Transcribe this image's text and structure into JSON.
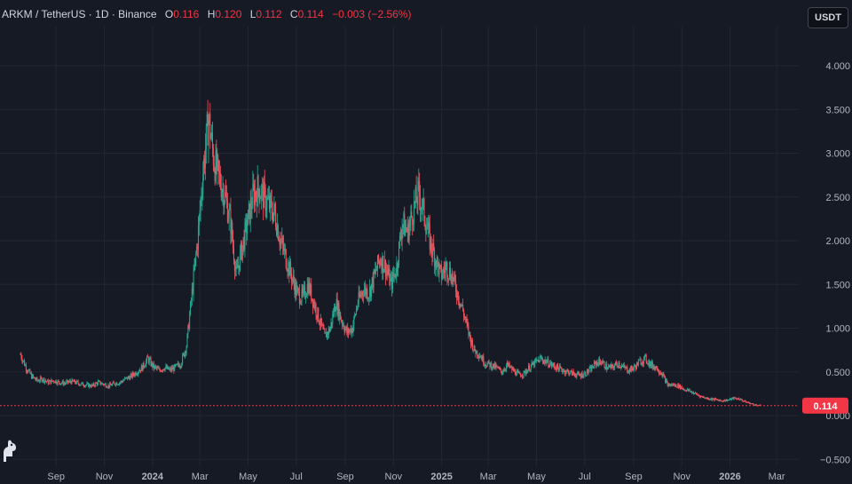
{
  "header": {
    "symbol": "ARKM / TetherUS · 1D · Binance",
    "o_label": "O",
    "o_val": "0.116",
    "h_label": "H",
    "h_val": "0.120",
    "l_label": "L",
    "l_val": "0.112",
    "c_label": "C",
    "c_val": "0.114",
    "change": "−0.003 (−2.56%)"
  },
  "currency_button": "USDT",
  "price_label": "0.114",
  "colors": {
    "up": "#22ab94",
    "down": "#f7525f",
    "grid": "#232632",
    "bg": "#161a25",
    "price_line": "#f23645"
  },
  "chart_data": {
    "type": "candlestick",
    "title": "",
    "xlabel": "",
    "ylabel": "",
    "ylim": [
      -0.5,
      4.5
    ],
    "y_ticks": [
      "4.000",
      "3.500",
      "3.000",
      "2.500",
      "2.000",
      "1.500",
      "1.000",
      "0.500",
      "0.000",
      "−0.500"
    ],
    "x_ticks": [
      "Sep",
      "Nov",
      "2024",
      "Mar",
      "May",
      "Jul",
      "Sep",
      "Nov",
      "2025",
      "Mar",
      "May",
      "Jul",
      "Sep",
      "Nov",
      "2026",
      "Mar"
    ],
    "series": [
      {
        "values": [
          [
            "2023-07-18",
            0.7
          ],
          [
            "2023-07-25",
            0.55
          ],
          [
            "2023-08-01",
            0.45
          ],
          [
            "2023-08-08",
            0.4
          ],
          [
            "2023-08-15",
            0.42
          ],
          [
            "2023-08-22",
            0.38
          ],
          [
            "2023-08-29",
            0.4
          ],
          [
            "2023-09-05",
            0.38
          ],
          [
            "2023-09-12",
            0.37
          ],
          [
            "2023-09-19",
            0.39
          ],
          [
            "2023-09-26",
            0.38
          ],
          [
            "2023-10-03",
            0.36
          ],
          [
            "2023-10-10",
            0.35
          ],
          [
            "2023-10-17",
            0.34
          ],
          [
            "2023-10-24",
            0.38
          ],
          [
            "2023-10-31",
            0.36
          ],
          [
            "2023-11-07",
            0.34
          ],
          [
            "2023-11-14",
            0.37
          ],
          [
            "2023-11-21",
            0.38
          ],
          [
            "2023-11-28",
            0.42
          ],
          [
            "2023-12-05",
            0.45
          ],
          [
            "2023-12-12",
            0.5
          ],
          [
            "2023-12-19",
            0.55
          ],
          [
            "2023-12-26",
            0.65
          ],
          [
            "2024-01-02",
            0.56
          ],
          [
            "2024-01-09",
            0.52
          ],
          [
            "2024-01-16",
            0.55
          ],
          [
            "2024-01-23",
            0.52
          ],
          [
            "2024-01-30",
            0.55
          ],
          [
            "2024-02-06",
            0.6
          ],
          [
            "2024-02-13",
            0.8
          ],
          [
            "2024-02-20",
            1.4
          ],
          [
            "2024-02-27",
            2.0
          ],
          [
            "2024-03-05",
            2.8
          ],
          [
            "2024-03-12",
            3.4
          ],
          [
            "2024-03-19",
            2.9
          ],
          [
            "2024-03-26",
            2.7
          ],
          [
            "2024-04-02",
            2.5
          ],
          [
            "2024-04-09",
            2.2
          ],
          [
            "2024-04-16",
            1.6
          ],
          [
            "2024-04-23",
            1.9
          ],
          [
            "2024-04-30",
            2.2
          ],
          [
            "2024-05-07",
            2.5
          ],
          [
            "2024-05-14",
            2.6
          ],
          [
            "2024-05-21",
            2.5
          ],
          [
            "2024-05-28",
            2.4
          ],
          [
            "2024-06-04",
            2.3
          ],
          [
            "2024-06-11",
            2.0
          ],
          [
            "2024-06-18",
            1.8
          ],
          [
            "2024-06-25",
            1.6
          ],
          [
            "2024-07-02",
            1.4
          ],
          [
            "2024-07-09",
            1.35
          ],
          [
            "2024-07-16",
            1.5
          ],
          [
            "2024-07-23",
            1.3
          ],
          [
            "2024-07-30",
            1.1
          ],
          [
            "2024-08-06",
            0.9
          ],
          [
            "2024-08-13",
            1.0
          ],
          [
            "2024-08-20",
            1.3
          ],
          [
            "2024-08-27",
            1.1
          ],
          [
            "2024-09-03",
            0.95
          ],
          [
            "2024-09-10",
            1.0
          ],
          [
            "2024-09-17",
            1.3
          ],
          [
            "2024-09-24",
            1.45
          ],
          [
            "2024-10-01",
            1.4
          ],
          [
            "2024-10-08",
            1.6
          ],
          [
            "2024-10-15",
            1.8
          ],
          [
            "2024-10-22",
            1.7
          ],
          [
            "2024-10-29",
            1.5
          ],
          [
            "2024-11-05",
            1.7
          ],
          [
            "2024-11-12",
            2.2
          ],
          [
            "2024-11-19",
            2.1
          ],
          [
            "2024-11-26",
            2.35
          ],
          [
            "2024-12-03",
            2.55
          ],
          [
            "2024-12-10",
            2.3
          ],
          [
            "2024-12-17",
            2.0
          ],
          [
            "2024-12-24",
            1.8
          ],
          [
            "2024-12-31",
            1.6
          ],
          [
            "2025-01-07",
            1.7
          ],
          [
            "2025-01-14",
            1.6
          ],
          [
            "2025-01-21",
            1.4
          ],
          [
            "2025-01-28",
            1.2
          ],
          [
            "2025-02-04",
            0.95
          ],
          [
            "2025-02-11",
            0.75
          ],
          [
            "2025-02-18",
            0.7
          ],
          [
            "2025-02-25",
            0.6
          ],
          [
            "2025-03-04",
            0.58
          ],
          [
            "2025-03-11",
            0.55
          ],
          [
            "2025-03-18",
            0.5
          ],
          [
            "2025-03-25",
            0.58
          ],
          [
            "2025-04-01",
            0.52
          ],
          [
            "2025-04-08",
            0.47
          ],
          [
            "2025-04-15",
            0.48
          ],
          [
            "2025-04-22",
            0.55
          ],
          [
            "2025-04-29",
            0.6
          ],
          [
            "2025-05-06",
            0.65
          ],
          [
            "2025-05-13",
            0.62
          ],
          [
            "2025-05-20",
            0.58
          ],
          [
            "2025-05-27",
            0.55
          ],
          [
            "2025-06-03",
            0.52
          ],
          [
            "2025-06-10",
            0.5
          ],
          [
            "2025-06-17",
            0.48
          ],
          [
            "2025-06-24",
            0.46
          ],
          [
            "2025-07-01",
            0.48
          ],
          [
            "2025-07-08",
            0.52
          ],
          [
            "2025-07-15",
            0.6
          ],
          [
            "2025-07-22",
            0.62
          ],
          [
            "2025-07-29",
            0.55
          ],
          [
            "2025-08-05",
            0.55
          ],
          [
            "2025-08-12",
            0.6
          ],
          [
            "2025-08-19",
            0.55
          ],
          [
            "2025-08-26",
            0.52
          ],
          [
            "2025-09-02",
            0.55
          ],
          [
            "2025-09-09",
            0.62
          ],
          [
            "2025-09-16",
            0.65
          ],
          [
            "2025-09-23",
            0.58
          ],
          [
            "2025-09-30",
            0.55
          ],
          [
            "2025-10-07",
            0.48
          ],
          [
            "2025-10-14",
            0.35
          ],
          [
            "2025-10-21",
            0.35
          ],
          [
            "2025-10-28",
            0.34
          ],
          [
            "2025-11-04",
            0.3
          ],
          [
            "2025-11-11",
            0.28
          ],
          [
            "2025-11-18",
            0.25
          ],
          [
            "2025-11-25",
            0.22
          ],
          [
            "2025-12-02",
            0.2
          ],
          [
            "2025-12-09",
            0.19
          ],
          [
            "2025-12-16",
            0.18
          ],
          [
            "2025-12-23",
            0.17
          ],
          [
            "2025-12-30",
            0.18
          ],
          [
            "2026-01-06",
            0.2
          ],
          [
            "2026-01-13",
            0.19
          ],
          [
            "2026-01-20",
            0.16
          ],
          [
            "2026-01-27",
            0.14
          ],
          [
            "2026-02-03",
            0.12
          ],
          [
            "2026-02-10",
            0.114
          ]
        ]
      }
    ]
  }
}
